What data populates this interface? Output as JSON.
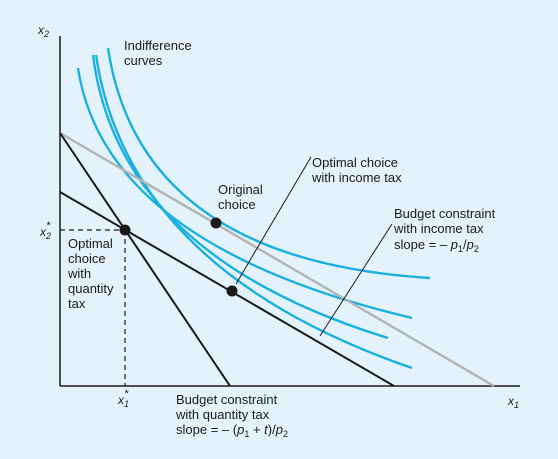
{
  "axes": {
    "x_label": "x",
    "x_sub": "1",
    "y_label": "x",
    "y_sub": "2"
  },
  "markers": {
    "x1_star": {
      "base": "x",
      "sub": "1",
      "sup": "*"
    },
    "x2_star": {
      "base": "x",
      "sub": "2",
      "sup": "*"
    }
  },
  "labels": {
    "indifference_curves": [
      "Indifference",
      "curves"
    ],
    "original_choice": [
      "Original",
      "choice"
    ],
    "optimal_income_tax": [
      "Optimal choice",
      "with income tax"
    ],
    "optimal_quantity_tax": [
      "Optimal",
      "choice",
      "with",
      "quantity",
      "tax"
    ],
    "budget_income_tax": [
      "Budget constraint",
      "with income tax"
    ],
    "budget_income_slope": {
      "prefix": "slope = – ",
      "p1": "p",
      "p1_sub": "1",
      "sep": "/",
      "p2": "p",
      "p2_sub": "2"
    },
    "budget_quantity_tax": [
      "Budget constraint",
      "with quantity tax"
    ],
    "budget_quantity_slope": {
      "prefix": "slope = – (",
      "p1": "p",
      "p1_sub": "1",
      "mid": " + ",
      "t": "t",
      "close": ")/",
      "p2": "p",
      "p2_sub": "2"
    }
  },
  "colors": {
    "background": "#e4f3fb",
    "indifference": "#1ab0e0",
    "original_budget": "#b3b3b3",
    "tax_budget": "#1a1a1a",
    "axis": "#1a1a1a"
  }
}
